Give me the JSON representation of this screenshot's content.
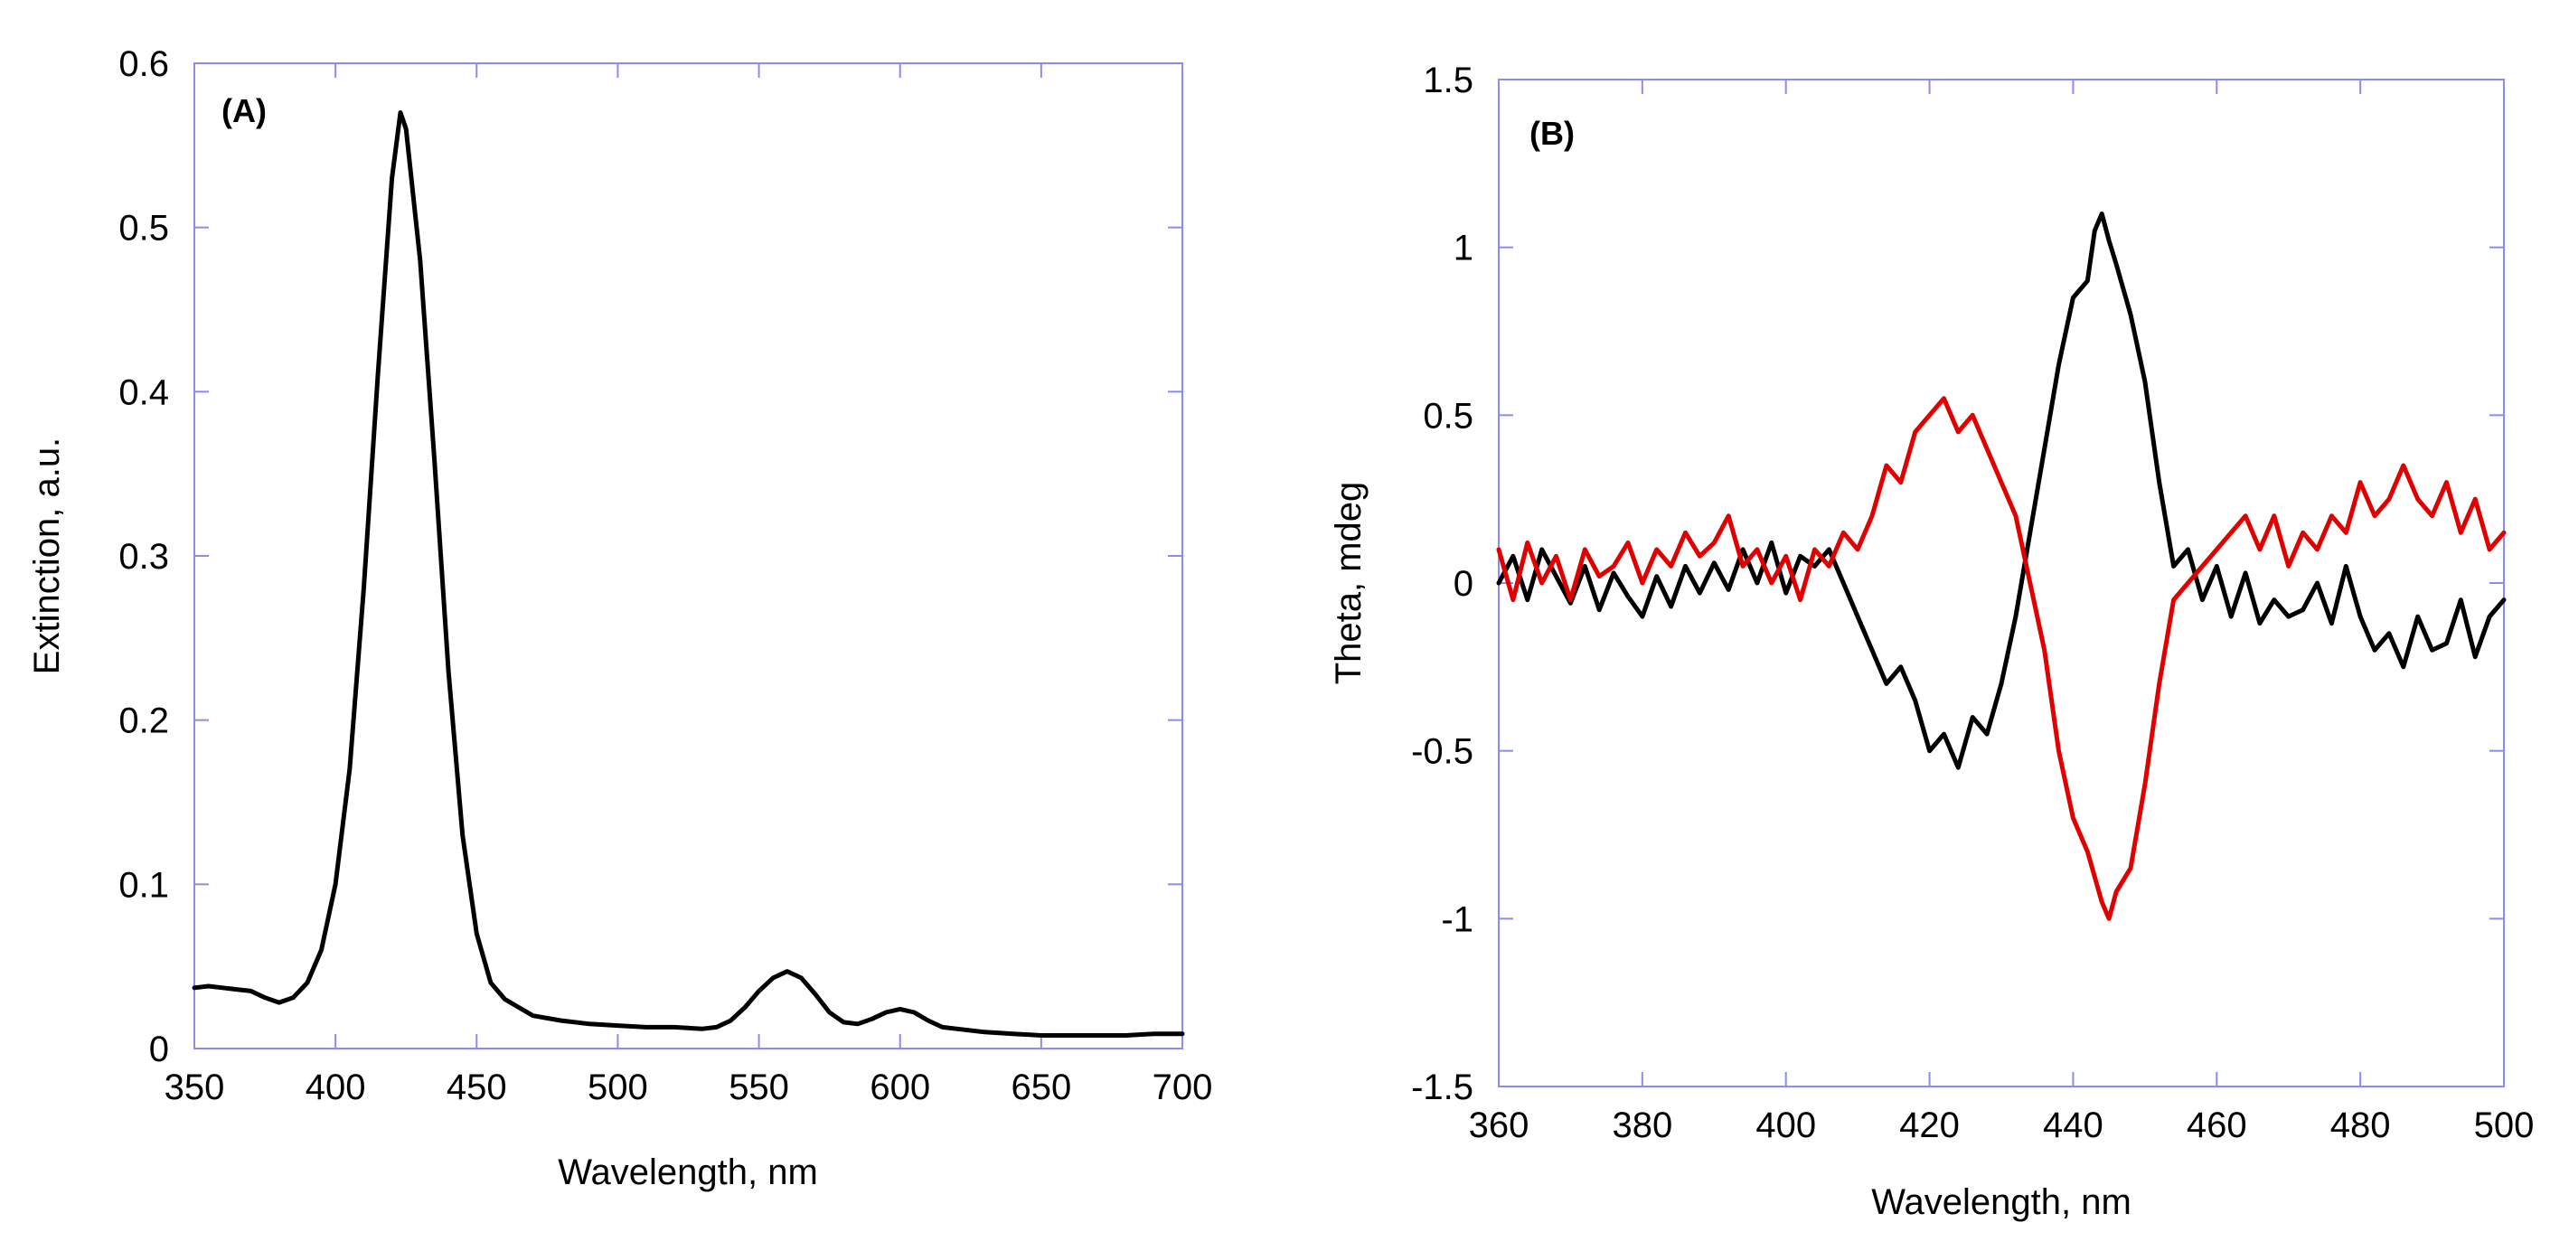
{
  "chart_data": [
    {
      "type": "line",
      "panel_label": "(A)",
      "xlabel": "Wavelength, nm",
      "ylabel": "Extinction, a.u.",
      "xlim": [
        350,
        700
      ],
      "ylim": [
        0,
        0.6
      ],
      "xticks": [
        350,
        400,
        450,
        500,
        550,
        600,
        650,
        700
      ],
      "yticks": [
        0,
        0.1,
        0.2,
        0.3,
        0.4,
        0.5,
        0.6
      ],
      "xtick_labels": [
        "350",
        "400",
        "450",
        "500",
        "550",
        "600",
        "650",
        "700"
      ],
      "ytick_labels": [
        "0",
        "0.1",
        "0.2",
        "0.3",
        "0.4",
        "0.5",
        "0.6"
      ],
      "grid": false,
      "series": [
        {
          "name": "extinction",
          "color": "#000000",
          "x": [
            350,
            355,
            360,
            365,
            370,
            375,
            380,
            385,
            390,
            395,
            400,
            405,
            410,
            415,
            420,
            423,
            425,
            430,
            435,
            440,
            445,
            450,
            455,
            460,
            465,
            470,
            480,
            490,
            500,
            510,
            520,
            530,
            535,
            540,
            545,
            550,
            555,
            560,
            565,
            570,
            575,
            580,
            585,
            590,
            595,
            600,
            605,
            610,
            615,
            620,
            630,
            640,
            650,
            660,
            670,
            680,
            690,
            700
          ],
          "y": [
            0.037,
            0.038,
            0.037,
            0.036,
            0.035,
            0.031,
            0.028,
            0.031,
            0.04,
            0.06,
            0.1,
            0.17,
            0.28,
            0.41,
            0.53,
            0.57,
            0.56,
            0.48,
            0.36,
            0.23,
            0.13,
            0.07,
            0.04,
            0.03,
            0.025,
            0.02,
            0.017,
            0.015,
            0.014,
            0.013,
            0.013,
            0.012,
            0.013,
            0.017,
            0.025,
            0.035,
            0.043,
            0.047,
            0.043,
            0.033,
            0.022,
            0.016,
            0.015,
            0.018,
            0.022,
            0.024,
            0.022,
            0.017,
            0.013,
            0.012,
            0.01,
            0.009,
            0.008,
            0.008,
            0.008,
            0.008,
            0.009,
            0.009
          ]
        }
      ]
    },
    {
      "type": "line",
      "panel_label": "(B)",
      "xlabel": "Wavelength, nm",
      "ylabel": "Theta, mdeg",
      "xlim": [
        360,
        500
      ],
      "ylim": [
        -1.5,
        1.5
      ],
      "xticks": [
        360,
        380,
        400,
        420,
        440,
        460,
        480,
        500
      ],
      "yticks": [
        -1.5,
        -1,
        -0.5,
        0,
        0.5,
        1,
        1.5
      ],
      "xtick_labels": [
        "360",
        "380",
        "400",
        "420",
        "440",
        "460",
        "480",
        "500"
      ],
      "ytick_labels": [
        "-1.5",
        "-1",
        "-0.5",
        "0",
        "0.5",
        "1",
        "1.5"
      ],
      "grid": false,
      "series": [
        {
          "name": "black",
          "color": "#000000",
          "x": [
            360,
            362,
            364,
            366,
            368,
            370,
            372,
            374,
            376,
            378,
            380,
            382,
            384,
            386,
            388,
            390,
            392,
            394,
            396,
            398,
            400,
            402,
            404,
            406,
            408,
            410,
            412,
            414,
            416,
            418,
            420,
            422,
            424,
            426,
            428,
            430,
            432,
            434,
            436,
            438,
            440,
            442,
            443,
            444,
            445,
            446,
            448,
            450,
            452,
            454,
            456,
            458,
            460,
            462,
            464,
            466,
            468,
            470,
            472,
            474,
            476,
            478,
            480,
            482,
            484,
            486,
            488,
            490,
            492,
            494,
            496,
            498,
            500
          ],
          "y": [
            0.0,
            0.08,
            -0.05,
            0.1,
            0.02,
            -0.06,
            0.05,
            -0.08,
            0.03,
            -0.04,
            -0.1,
            0.02,
            -0.07,
            0.05,
            -0.03,
            0.06,
            -0.02,
            0.1,
            0.0,
            0.12,
            -0.03,
            0.08,
            0.05,
            0.1,
            0.0,
            -0.1,
            -0.2,
            -0.3,
            -0.25,
            -0.35,
            -0.5,
            -0.45,
            -0.55,
            -0.4,
            -0.45,
            -0.3,
            -0.1,
            0.15,
            0.4,
            0.65,
            0.85,
            0.9,
            1.05,
            1.1,
            1.02,
            0.95,
            0.8,
            0.6,
            0.3,
            0.05,
            0.1,
            -0.05,
            0.05,
            -0.1,
            0.03,
            -0.12,
            -0.05,
            -0.1,
            -0.08,
            0.0,
            -0.12,
            0.05,
            -0.1,
            -0.2,
            -0.15,
            -0.25,
            -0.1,
            -0.2,
            -0.18,
            -0.05,
            -0.22,
            -0.1,
            -0.05
          ]
        },
        {
          "name": "red",
          "color": "#e00000",
          "x": [
            360,
            362,
            364,
            366,
            368,
            370,
            372,
            374,
            376,
            378,
            380,
            382,
            384,
            386,
            388,
            390,
            392,
            394,
            396,
            398,
            400,
            402,
            404,
            406,
            408,
            410,
            412,
            414,
            416,
            418,
            420,
            422,
            424,
            426,
            428,
            430,
            432,
            434,
            436,
            438,
            440,
            442,
            444,
            445,
            446,
            448,
            450,
            452,
            454,
            456,
            458,
            460,
            462,
            464,
            466,
            468,
            470,
            472,
            474,
            476,
            478,
            480,
            482,
            484,
            486,
            488,
            490,
            492,
            494,
            496,
            498,
            500
          ],
          "y": [
            0.1,
            -0.05,
            0.12,
            0.0,
            0.08,
            -0.05,
            0.1,
            0.02,
            0.05,
            0.12,
            0.0,
            0.1,
            0.05,
            0.15,
            0.08,
            0.12,
            0.2,
            0.05,
            0.1,
            0.0,
            0.08,
            -0.05,
            0.1,
            0.05,
            0.15,
            0.1,
            0.2,
            0.35,
            0.3,
            0.45,
            0.5,
            0.55,
            0.45,
            0.5,
            0.4,
            0.3,
            0.2,
            0.0,
            -0.2,
            -0.5,
            -0.7,
            -0.8,
            -0.95,
            -1.0,
            -0.92,
            -0.85,
            -0.6,
            -0.3,
            -0.05,
            0.0,
            0.05,
            0.1,
            0.15,
            0.2,
            0.1,
            0.2,
            0.05,
            0.15,
            0.1,
            0.2,
            0.15,
            0.3,
            0.2,
            0.25,
            0.35,
            0.25,
            0.2,
            0.3,
            0.15,
            0.25,
            0.1,
            0.15
          ]
        }
      ]
    }
  ]
}
